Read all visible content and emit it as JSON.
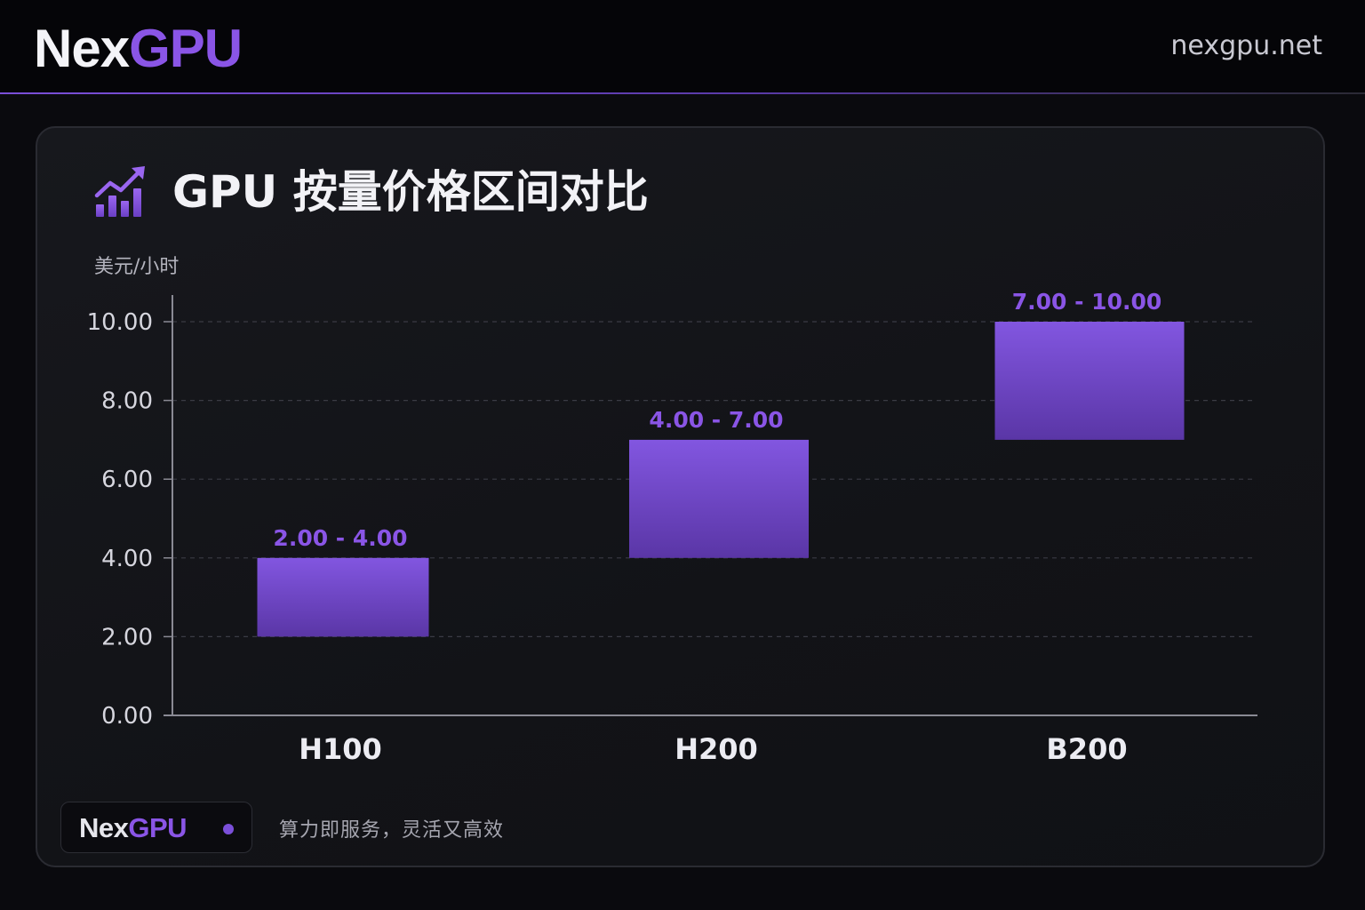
{
  "header": {
    "brand_white": "Nex",
    "brand_purple": "GPU",
    "site": "nexgpu.net"
  },
  "title": "GPU 按量价格区间对比",
  "title_icon": "bar-chart-trend-icon",
  "footer": {
    "brand_white": "Nex",
    "brand_purple": "GPU",
    "tagline": "算力即服务，灵活又高效"
  },
  "colors": {
    "accent": "#8a55e6",
    "bar_top": "#8256e0",
    "bar_bottom": "#5a36a6",
    "label": "#8a55e6",
    "background": "#0a0a0e"
  },
  "chart_data": {
    "type": "bar",
    "subtype": "floating-range",
    "ylabel": "美元/小时",
    "ylim": [
      0,
      10
    ],
    "yticks": [
      "0.00",
      "2.00",
      "4.00",
      "6.00",
      "8.00",
      "10.00"
    ],
    "grid": true,
    "categories": [
      "H100",
      "H200",
      "B200"
    ],
    "ranges": [
      {
        "low": 2.0,
        "high": 4.0,
        "label": "2.00 - 4.00"
      },
      {
        "low": 4.0,
        "high": 7.0,
        "label": "4.00 - 7.00"
      },
      {
        "low": 7.0,
        "high": 10.0,
        "label": "7.00 - 10.00"
      }
    ]
  }
}
